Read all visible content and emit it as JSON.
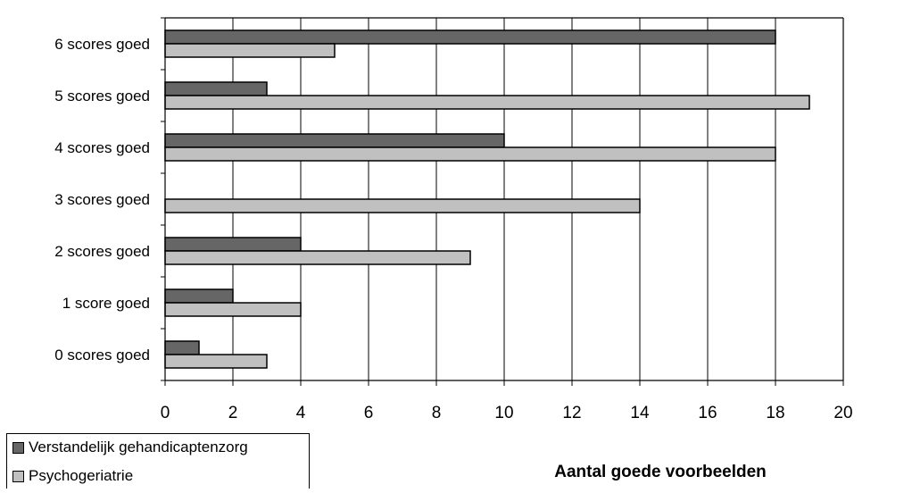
{
  "chart_data": {
    "type": "bar",
    "orientation": "horizontal",
    "categories": [
      "0 scores goed",
      "1 score goed",
      "2 scores goed",
      "3 scores goed",
      "4 scores goed",
      "5 scores goed",
      "6 scores goed"
    ],
    "series": [
      {
        "name": "Verstandelijk gehandicaptenzorg",
        "color": "#666666",
        "values": [
          1,
          2,
          4,
          0,
          10,
          3,
          18
        ]
      },
      {
        "name": "Psychogeriatrie",
        "color": "#c0c0c0",
        "values": [
          3,
          4,
          9,
          14,
          18,
          19,
          5
        ]
      }
    ],
    "xlabel": "Aantal goede voorbeelden",
    "ylabel": "",
    "xlim": [
      0,
      20
    ],
    "xticks": [
      "0",
      "2",
      "4",
      "6",
      "8",
      "10",
      "12",
      "14",
      "16",
      "18",
      "20"
    ],
    "grid": "vertical",
    "legend_position": "bottom-left"
  }
}
